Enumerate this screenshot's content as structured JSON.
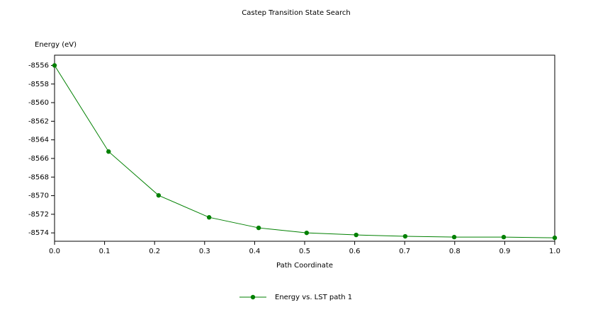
{
  "chart_data": {
    "type": "line",
    "title": "Castep Transition State Search",
    "y_label": "Energy (eV)",
    "x_label": "Path Coordinate",
    "x": [
      0,
      0.108,
      0.208,
      0.309,
      0.408,
      0.504,
      0.603,
      0.701,
      0.799,
      0.898,
      1.0
    ],
    "series": [
      {
        "name": "Energy vs. LST path 1",
        "color": "#008000",
        "values": [
          -8556,
          -8565.26,
          -8569.97,
          -8572.33,
          -8573.46,
          -8574.0,
          -8574.22,
          -8574.37,
          -8574.45,
          -8574.45,
          -8574.53
        ]
      }
    ],
    "xlim": [
      0,
      1
    ],
    "ylim": [
      -8574.9,
      -8554.9
    ],
    "xticks": [
      {
        "value": 0,
        "label": "0.0"
      },
      0.1,
      0.2,
      0.3,
      0.4,
      0.5,
      0.6,
      0.7,
      0.8,
      0.9,
      {
        "value": 1,
        "label": "1.0"
      }
    ],
    "yticks": [
      -8556,
      -8558,
      -8560,
      -8562,
      -8564,
      -8566,
      -8568,
      -8570,
      -8572,
      -8574
    ],
    "grid": false,
    "legend": "bottom"
  }
}
